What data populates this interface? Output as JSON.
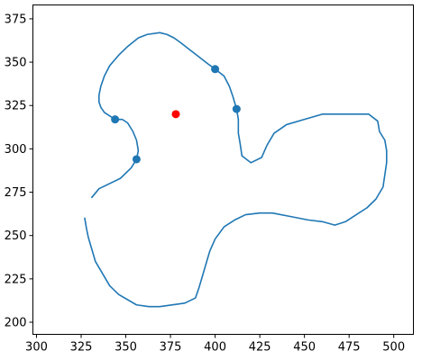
{
  "chart_data": {
    "type": "line",
    "title": "",
    "xlabel": "",
    "ylabel": "",
    "xlim": [
      298,
      511
    ],
    "ylim": [
      193,
      383
    ],
    "grid": false,
    "x_ticks": [
      300,
      325,
      350,
      375,
      400,
      425,
      450,
      475,
      500
    ],
    "y_ticks": [
      200,
      225,
      250,
      275,
      300,
      325,
      350,
      375
    ],
    "series": [
      {
        "kind": "curve",
        "color": "#1f77b4",
        "points": [
          [
            331,
            272
          ],
          [
            335,
            277
          ],
          [
            347,
            283
          ],
          [
            353,
            289
          ],
          [
            356,
            294
          ],
          [
            357,
            299
          ],
          [
            356,
            305
          ],
          [
            354,
            310
          ],
          [
            351,
            315
          ],
          [
            348,
            317
          ],
          [
            344,
            317
          ],
          [
            341,
            319
          ],
          [
            338,
            321
          ],
          [
            336,
            324
          ],
          [
            335,
            327
          ],
          [
            335,
            331
          ],
          [
            336,
            336
          ],
          [
            338,
            342
          ],
          [
            341,
            348
          ],
          [
            346,
            354
          ],
          [
            351,
            359
          ],
          [
            357,
            364
          ],
          [
            362,
            366
          ],
          [
            369,
            367
          ],
          [
            373,
            366
          ],
          [
            377,
            364
          ],
          [
            381,
            361
          ],
          [
            386,
            357
          ],
          [
            391,
            353
          ],
          [
            396,
            349
          ],
          [
            400,
            346
          ],
          [
            405,
            342
          ],
          [
            408,
            336
          ],
          [
            410,
            330
          ],
          [
            412,
            323
          ],
          [
            413,
            317
          ],
          [
            413,
            309
          ],
          [
            414,
            303
          ],
          [
            415,
            296
          ],
          [
            420,
            292
          ],
          [
            426,
            295
          ],
          [
            429,
            302
          ],
          [
            433,
            309
          ],
          [
            440,
            314
          ],
          [
            450,
            317
          ],
          [
            460,
            320
          ],
          [
            470,
            320
          ],
          [
            478,
            320
          ],
          [
            486,
            320
          ],
          [
            491,
            316
          ],
          [
            492,
            310
          ],
          [
            495,
            305
          ],
          [
            496,
            299
          ],
          [
            496,
            292
          ],
          [
            495,
            285
          ],
          [
            494,
            278
          ],
          [
            490,
            271
          ],
          [
            485,
            266
          ],
          [
            479,
            262
          ],
          [
            473,
            258
          ],
          [
            467,
            256
          ],
          [
            460,
            258
          ],
          [
            452,
            259
          ],
          [
            442,
            261
          ],
          [
            432,
            263
          ],
          [
            425,
            263
          ],
          [
            417,
            262
          ],
          [
            411,
            259
          ],
          [
            405,
            255
          ],
          [
            400,
            248
          ],
          [
            397,
            241
          ],
          [
            395,
            234
          ],
          [
            393,
            227
          ],
          [
            391,
            220
          ],
          [
            389,
            214
          ],
          [
            383,
            211
          ],
          [
            369,
            209
          ],
          [
            363,
            209
          ],
          [
            356,
            210
          ],
          [
            346,
            216
          ],
          [
            341,
            221
          ],
          [
            337,
            228
          ],
          [
            333,
            235
          ],
          [
            331,
            242
          ],
          [
            329,
            249
          ],
          [
            328,
            254
          ],
          [
            327,
            260
          ]
        ]
      },
      {
        "kind": "markers",
        "color": "#1f77b4",
        "points": [
          [
            400,
            346
          ],
          [
            412,
            323
          ],
          [
            344,
            317
          ],
          [
            356,
            294
          ]
        ]
      },
      {
        "kind": "markers",
        "color": "#ff0000",
        "points": [
          [
            378,
            320
          ]
        ]
      }
    ]
  }
}
